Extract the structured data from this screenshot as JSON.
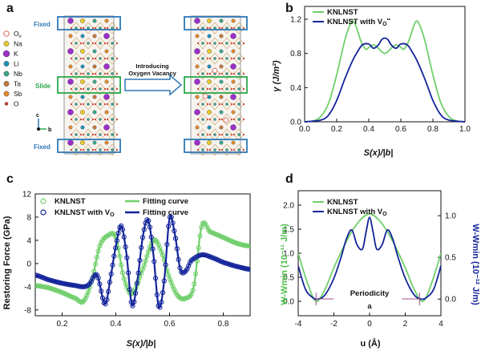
{
  "panel_a": {
    "label": "a",
    "fixed_top": "Fixed",
    "slide": "Slide",
    "fixed_bottom": "Fixed",
    "arrow_text_1": "Introducing",
    "arrow_text_2": "Oxygen Vacancy",
    "axis_c": "c",
    "axis_b": "b",
    "legend": [
      {
        "label": "Ov",
        "color": "#ffffff",
        "edge": "#d9534f"
      },
      {
        "label": "Na",
        "color": "#e8c832"
      },
      {
        "label": "K",
        "color": "#9b30c8"
      },
      {
        "label": "Li",
        "color": "#1f8fb5"
      },
      {
        "label": "Nb",
        "color": "#3aa68a"
      },
      {
        "label": "Ta",
        "color": "#c07a3a"
      },
      {
        "label": "Sb",
        "color": "#e08a2e"
      },
      {
        "label": "O",
        "color": "#d03a2a"
      }
    ],
    "colors": {
      "frame": "#2e78b7",
      "slide_frame": "#2aa84a"
    }
  },
  "chart_data": [
    {
      "id": "b",
      "panel_label": "b",
      "type": "line",
      "xlabel": "S(x)/|b|",
      "ylabel": "γ (J/m²)",
      "xlim": [
        0.0,
        1.0
      ],
      "ylim": [
        0.0,
        1.35
      ],
      "xticks": [
        "0.0",
        "0.2",
        "0.4",
        "0.6",
        "0.8",
        "1.0"
      ],
      "yticks": [
        "0.0",
        "0.4",
        "0.8",
        "1.2"
      ],
      "series": [
        {
          "name": "KNLNST",
          "color": "#6fcf6a",
          "x": [
            0.0,
            0.05,
            0.1,
            0.15,
            0.2,
            0.25,
            0.28,
            0.3,
            0.32,
            0.35,
            0.38,
            0.4,
            0.43,
            0.46,
            0.5,
            0.54,
            0.57,
            0.6,
            0.62,
            0.65,
            0.68,
            0.7,
            0.72,
            0.75,
            0.8,
            0.85,
            0.9,
            0.95,
            1.0
          ],
          "y": [
            0.0,
            0.01,
            0.06,
            0.22,
            0.55,
            0.95,
            1.12,
            1.18,
            1.12,
            0.95,
            0.85,
            0.87,
            0.9,
            0.86,
            0.8,
            0.86,
            0.9,
            0.87,
            0.85,
            0.95,
            1.12,
            1.18,
            1.12,
            0.95,
            0.55,
            0.22,
            0.06,
            0.01,
            0.0
          ]
        },
        {
          "name": "KNLNST with Vo",
          "color": "#13249a",
          "x": [
            0.0,
            0.1,
            0.15,
            0.2,
            0.25,
            0.3,
            0.33,
            0.36,
            0.4,
            0.43,
            0.46,
            0.48,
            0.5,
            0.52,
            0.54,
            0.57,
            0.6,
            0.64,
            0.67,
            0.7,
            0.75,
            0.8,
            0.85,
            0.9,
            1.0
          ],
          "y": [
            0.0,
            0.02,
            0.08,
            0.25,
            0.5,
            0.72,
            0.82,
            0.9,
            0.91,
            0.86,
            0.9,
            0.96,
            0.98,
            0.96,
            0.9,
            0.86,
            0.91,
            0.9,
            0.82,
            0.72,
            0.5,
            0.25,
            0.08,
            0.02,
            0.0
          ]
        }
      ]
    },
    {
      "id": "c",
      "panel_label": "c",
      "type": "scatter",
      "xlabel": "S(x)/|b|",
      "ylabel": "Restoring Force (GPa)",
      "xlim": [
        0.1,
        0.9
      ],
      "ylim": [
        -9,
        12
      ],
      "xticks": [
        "0.2",
        "0.4",
        "0.6",
        "0.8"
      ],
      "yticks": [
        "-8",
        "-4",
        "0",
        "4",
        "8",
        "12"
      ],
      "legend": [
        "KNLNST",
        "Fitting curve",
        "KNLNST with Vo",
        "Fitting curve"
      ],
      "series": [
        {
          "name": "KNLNST",
          "color": "#6fcf6a",
          "marker": "open-circle",
          "x": [
            0.1,
            0.15,
            0.2,
            0.25,
            0.28,
            0.31,
            0.34,
            0.37,
            0.4,
            0.43,
            0.46,
            0.5,
            0.54,
            0.57,
            0.6,
            0.63,
            0.66,
            0.69,
            0.72,
            0.75,
            0.8,
            0.85,
            0.9
          ],
          "y": [
            -3.8,
            -4.2,
            -5.0,
            -6.0,
            -6.5,
            -3.0,
            3.0,
            4.8,
            4.5,
            -2.5,
            -5.2,
            -1.0,
            4.0,
            2.0,
            -2.5,
            -5.5,
            -6.0,
            -4.0,
            6.5,
            5.5,
            4.5,
            3.5,
            3.0
          ]
        },
        {
          "name": "KNLNST with Vo",
          "color": "#13249a",
          "marker": "open-circle",
          "x": [
            0.1,
            0.15,
            0.2,
            0.25,
            0.28,
            0.3,
            0.33,
            0.36,
            0.38,
            0.4,
            0.42,
            0.44,
            0.46,
            0.48,
            0.5,
            0.52,
            0.54,
            0.56,
            0.58,
            0.6,
            0.62,
            0.64,
            0.66,
            0.68,
            0.72,
            0.76,
            0.8,
            0.85,
            0.9
          ],
          "y": [
            -2.0,
            -2.8,
            -3.4,
            -3.8,
            -4.0,
            -3.6,
            -2.0,
            -7.0,
            -2.5,
            3.0,
            6.5,
            1.5,
            -7.2,
            -3.0,
            4.5,
            7.5,
            1.5,
            -7.5,
            -3.0,
            7.8,
            5.0,
            -1.0,
            -1.3,
            0.5,
            1.5,
            1.0,
            0.2,
            -0.5,
            -1.0
          ]
        }
      ]
    },
    {
      "id": "d",
      "panel_label": "d",
      "type": "line",
      "xlabel": "u (Å)",
      "ylabel_left": "W-Wmin (10⁻¹¹ J/m)",
      "ylabel_right": "W-Wmin (10⁻¹² J/m)",
      "xlim": [
        -4,
        4
      ],
      "ylim_left": [
        -0.3,
        2.3
      ],
      "ylim_right": [
        -0.2,
        1.3
      ],
      "xticks": [
        "-4",
        "-2",
        "0",
        "2",
        "4"
      ],
      "yticks_left": [
        "0.0",
        "0.5",
        "1.0",
        "1.5",
        "2.0"
      ],
      "yticks_right": [
        "0.0",
        "0.5",
        "1.0"
      ],
      "annotation_1": "Periodicity",
      "annotation_2": "a",
      "series": [
        {
          "name": "KNLNST",
          "color": "#6fcf6a",
          "axis": "left",
          "x": [
            -4.0,
            -3.5,
            -3.0,
            -2.5,
            -2.0,
            -1.5,
            -1.0,
            -0.5,
            0.0,
            0.5,
            1.0,
            1.5,
            2.0,
            2.5,
            3.0,
            3.5,
            4.0
          ],
          "y": [
            1.0,
            0.4,
            0.0,
            0.25,
            0.7,
            1.1,
            1.45,
            1.7,
            1.82,
            1.7,
            1.45,
            1.1,
            0.7,
            0.25,
            0.0,
            0.4,
            1.0
          ]
        },
        {
          "name": "KNLNST with Vo",
          "color": "#13249a",
          "axis": "right",
          "x": [
            -4.0,
            -3.6,
            -3.2,
            -2.9,
            -2.5,
            -2.0,
            -1.6,
            -1.3,
            -1.0,
            -0.7,
            -0.4,
            -0.2,
            0.0,
            0.2,
            0.4,
            0.7,
            1.0,
            1.3,
            1.6,
            2.0,
            2.5,
            2.9,
            3.2,
            3.6,
            4.0
          ],
          "y": [
            0.4,
            0.12,
            0.02,
            0.0,
            0.05,
            0.25,
            0.5,
            0.72,
            0.83,
            0.65,
            0.6,
            0.8,
            0.98,
            0.8,
            0.6,
            0.65,
            0.83,
            0.72,
            0.5,
            0.25,
            0.05,
            0.0,
            0.02,
            0.12,
            0.4
          ]
        }
      ]
    }
  ]
}
